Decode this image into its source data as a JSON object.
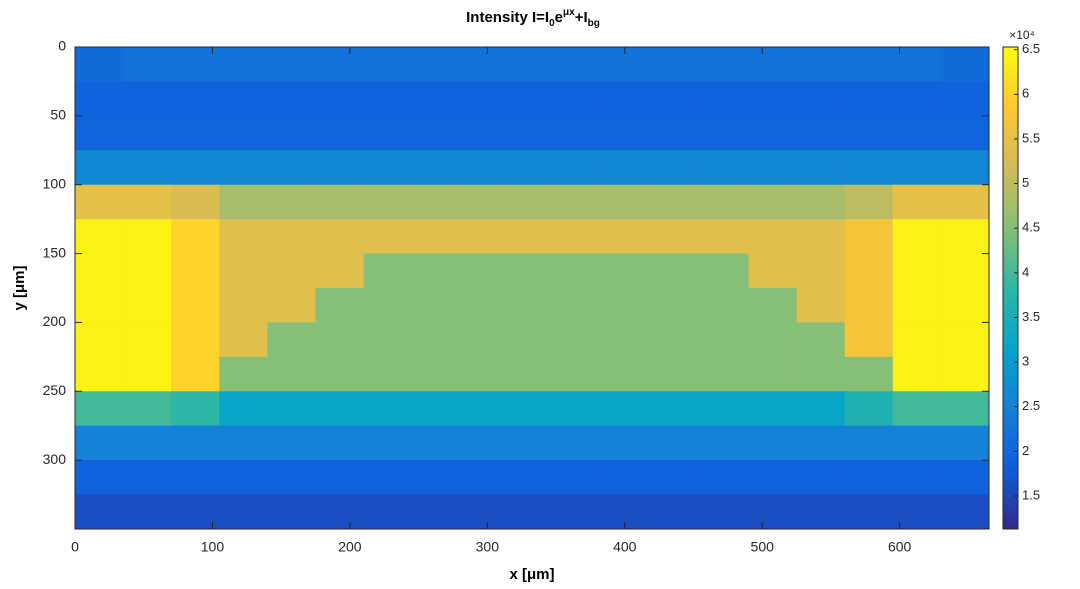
{
  "chart_data": {
    "type": "heatmap",
    "title": [
      "Intensity I=I",
      "0",
      "e",
      "μx",
      "+I",
      "bg"
    ],
    "xlabel": "x [μm]",
    "ylabel": "y [μm]",
    "xbins": [
      0,
      35,
      70,
      105,
      140,
      175,
      210,
      245,
      280,
      315,
      350,
      385,
      420,
      455,
      490,
      525,
      560,
      595,
      630,
      665
    ],
    "ybins": [
      0,
      25,
      50,
      75,
      100,
      125,
      150,
      175,
      200,
      225,
      250,
      275,
      300,
      325,
      350
    ],
    "xlim": [
      0,
      665
    ],
    "ylim": [
      0,
      350
    ],
    "y_reversed": true,
    "xticks": [
      0,
      100,
      200,
      300,
      400,
      500,
      600
    ],
    "yticks": [
      0,
      50,
      100,
      150,
      200,
      250,
      300
    ],
    "values": [
      [
        21000,
        22000,
        22000,
        22000,
        22000,
        22000,
        22000,
        22000,
        22000,
        22000,
        22000,
        22000,
        22000,
        22000,
        22000,
        22000,
        22000,
        22000,
        21000
      ],
      [
        19000,
        19000,
        19000,
        19000,
        19000,
        19000,
        19000,
        19000,
        19000,
        19000,
        19000,
        19000,
        19000,
        19000,
        19000,
        19000,
        19000,
        19000,
        19000
      ],
      [
        19500,
        19500,
        19500,
        19500,
        19500,
        19500,
        19500,
        19500,
        19500,
        19500,
        19500,
        19500,
        19500,
        19500,
        19500,
        19500,
        19500,
        19500,
        19500
      ],
      [
        26000,
        26000,
        26000,
        26000,
        26000,
        26000,
        26000,
        26000,
        26000,
        26000,
        26000,
        26000,
        26000,
        26000,
        26000,
        26000,
        26000,
        26000,
        26000
      ],
      [
        55000,
        55000,
        53000,
        48000,
        48000,
        48000,
        48000,
        48000,
        48000,
        48000,
        48000,
        48000,
        48000,
        48000,
        48000,
        48000,
        50000,
        55000,
        55000
      ],
      [
        64000,
        64000,
        60000,
        54000,
        54000,
        54000,
        54000,
        54000,
        54000,
        54000,
        54000,
        54000,
        54000,
        54000,
        54000,
        54000,
        57000,
        64000,
        64000
      ],
      [
        64000,
        64000,
        60000,
        54000,
        54000,
        54000,
        45000,
        45000,
        45000,
        45000,
        45000,
        45000,
        45000,
        45000,
        54000,
        54000,
        57000,
        64000,
        64000
      ],
      [
        64000,
        64000,
        60000,
        54000,
        54000,
        45000,
        45000,
        45000,
        45000,
        45000,
        45000,
        45000,
        45000,
        45000,
        45000,
        54000,
        57000,
        64000,
        64000
      ],
      [
        64000,
        64000,
        60000,
        54000,
        45000,
        45000,
        45000,
        45000,
        45000,
        45000,
        45000,
        45000,
        45000,
        45000,
        45000,
        45000,
        57000,
        64000,
        64000
      ],
      [
        64000,
        64000,
        60000,
        45000,
        45000,
        45000,
        45000,
        45000,
        45000,
        45000,
        45000,
        45000,
        45000,
        45000,
        45000,
        45000,
        45000,
        64000,
        64000
      ],
      [
        40000,
        40000,
        38000,
        32000,
        32000,
        32000,
        32000,
        32000,
        32000,
        32000,
        32000,
        32000,
        32000,
        32000,
        32000,
        32000,
        36000,
        40000,
        40000
      ],
      [
        25000,
        25000,
        25000,
        25000,
        25000,
        25000,
        25000,
        25000,
        25000,
        25000,
        25000,
        25000,
        25000,
        25000,
        25000,
        25000,
        25000,
        25000,
        25000
      ],
      [
        19000,
        19000,
        19000,
        19000,
        19000,
        19000,
        19000,
        19000,
        19000,
        19000,
        19000,
        19000,
        19000,
        19000,
        19000,
        19000,
        19000,
        19000,
        19000
      ],
      [
        16000,
        16000,
        16000,
        16000,
        16000,
        16000,
        16000,
        16000,
        16000,
        16000,
        16000,
        16000,
        16000,
        16000,
        16000,
        16000,
        16000,
        16000,
        16000
      ]
    ],
    "clim": [
      11300,
      65300
    ],
    "colorbar_exponent": "×10⁴",
    "colorbar_ticks": [
      {
        "value": 15000,
        "label": "1.5"
      },
      {
        "value": 20000,
        "label": "2"
      },
      {
        "value": 25000,
        "label": "2.5"
      },
      {
        "value": 30000,
        "label": "3"
      },
      {
        "value": 35000,
        "label": "3.5"
      },
      {
        "value": 40000,
        "label": "4"
      },
      {
        "value": 45000,
        "label": "4.5"
      },
      {
        "value": 50000,
        "label": "5"
      },
      {
        "value": 55000,
        "label": "5.5"
      },
      {
        "value": 60000,
        "label": "6"
      },
      {
        "value": 65000,
        "label": "6.5"
      }
    ],
    "colormap": [
      "#352a87",
      "#0f5cdd",
      "#1481d6",
      "#06a4ca",
      "#2eb7a4",
      "#87bf77",
      "#d1bb59",
      "#fec832",
      "#f9fb0e"
    ]
  }
}
